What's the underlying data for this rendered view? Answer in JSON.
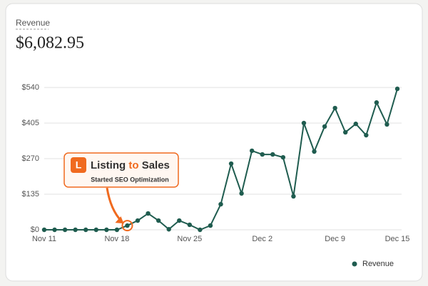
{
  "chart_data": {
    "type": "line",
    "title": "Revenue",
    "total": "$6,082.95",
    "categories": [
      "Nov 11",
      null,
      null,
      null,
      null,
      null,
      null,
      "Nov 18",
      null,
      null,
      null,
      null,
      null,
      null,
      "Nov 25",
      null,
      null,
      null,
      null,
      null,
      null,
      "Dec 2",
      null,
      null,
      null,
      null,
      null,
      null,
      "Dec 9",
      null,
      null,
      null,
      null,
      null,
      "Dec 15"
    ],
    "series": [
      {
        "name": "Revenue",
        "color": "#1f5c4f",
        "values": [
          0,
          0,
          0,
          0,
          0,
          0,
          0,
          0,
          16,
          35,
          62,
          35,
          2,
          35,
          19,
          0,
          16,
          97,
          251,
          138,
          300,
          286,
          286,
          275,
          127,
          405,
          297,
          392,
          462,
          370,
          402,
          359,
          483,
          400,
          535
        ]
      }
    ],
    "ylim": [
      0,
      540
    ],
    "yticks": [
      {
        "value": 0,
        "label": "$0"
      },
      {
        "value": 135,
        "label": "$135"
      },
      {
        "value": 270,
        "label": "$270"
      },
      {
        "value": 405,
        "label": "$405"
      },
      {
        "value": 540,
        "label": "$540"
      }
    ],
    "grid": true,
    "legend": "bottom-right",
    "annotation": {
      "badge": "L",
      "brand": [
        "Listing",
        "to",
        "Sales"
      ],
      "text": "Started SEO Optimization",
      "color": "#f06a1f"
    }
  }
}
